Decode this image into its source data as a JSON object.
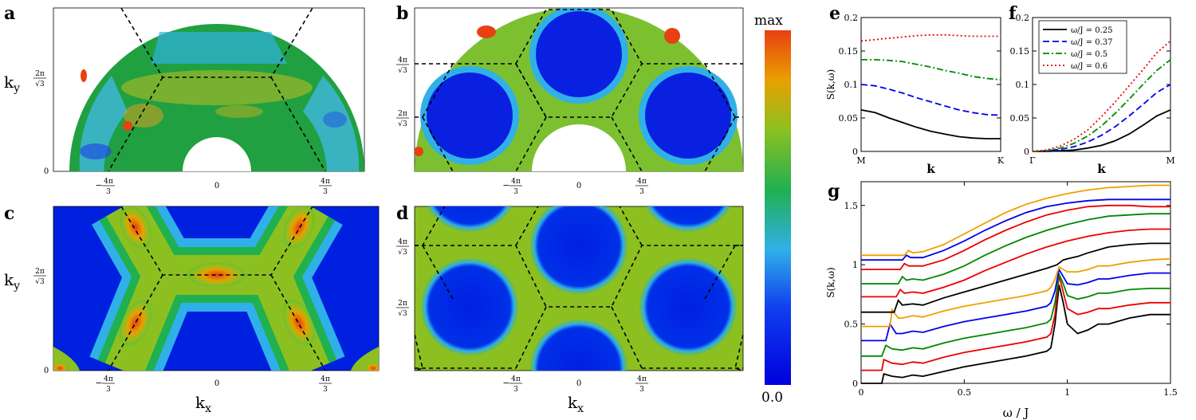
{
  "panel_labels": {
    "a": "a",
    "b": "b",
    "c": "c",
    "d": "d",
    "e": "e",
    "f": "f",
    "g": "g"
  },
  "maps": {
    "ky_label": "k",
    "ky_sub": "y",
    "kx_label": "k",
    "kx_sub": "x",
    "x_ticks": [
      {
        "minus": "−",
        "num": "4π",
        "den": "3"
      },
      {
        "minus": "",
        "num": "0",
        "den": ""
      },
      {
        "minus": "",
        "num": "4π",
        "den": "3"
      }
    ],
    "y_ticks_ac": [
      {
        "num": "2π",
        "den": "√3"
      },
      {
        "num": "0",
        "den": ""
      }
    ],
    "y_ticks_bd": [
      {
        "num": "4π",
        "den": "√3"
      },
      {
        "num": "2π",
        "den": "√3"
      }
    ],
    "zero_label": "0"
  },
  "colorbar": {
    "max_label": "max",
    "min_label": "0.0",
    "colors": [
      "#0000dd",
      "#1040ee",
      "#30b0e8",
      "#20b050",
      "#8cc020",
      "#e8a000",
      "#e84010"
    ]
  },
  "chart_data": [
    {
      "panel": "e",
      "type": "line",
      "ylabel": "S(k,ω)",
      "xlabel": "k",
      "x_tick_labels": [
        "M",
        "K"
      ],
      "ylim": [
        0,
        0.2
      ],
      "yticks": [
        "0",
        "0.05",
        "0.1",
        "0.15",
        "0.2"
      ],
      "series": [
        {
          "name": "ω/J = 0.25",
          "color": "#000000",
          "dash": "solid",
          "x": [
            0,
            0.1,
            0.2,
            0.3,
            0.4,
            0.5,
            0.6,
            0.7,
            0.8,
            0.9,
            1
          ],
          "y": [
            0.062,
            0.058,
            0.05,
            0.043,
            0.036,
            0.03,
            0.026,
            0.022,
            0.02,
            0.019,
            0.019
          ]
        },
        {
          "name": "ω/J = 0.37",
          "color": "#0000ee",
          "dash": "dash",
          "x": [
            0,
            0.1,
            0.2,
            0.3,
            0.4,
            0.5,
            0.6,
            0.7,
            0.8,
            0.9,
            1
          ],
          "y": [
            0.1,
            0.098,
            0.093,
            0.087,
            0.08,
            0.074,
            0.068,
            0.062,
            0.058,
            0.055,
            0.054
          ]
        },
        {
          "name": "ω/J = 0.5",
          "color": "#008800",
          "dash": "dashdot",
          "x": [
            0,
            0.1,
            0.2,
            0.3,
            0.4,
            0.5,
            0.6,
            0.7,
            0.8,
            0.9,
            1
          ],
          "y": [
            0.137,
            0.137,
            0.136,
            0.134,
            0.13,
            0.126,
            0.121,
            0.117,
            0.112,
            0.109,
            0.107
          ]
        },
        {
          "name": "ω/J = 0.6",
          "color": "#ee0000",
          "dash": "dot",
          "x": [
            0,
            0.1,
            0.2,
            0.3,
            0.4,
            0.5,
            0.6,
            0.7,
            0.8,
            0.9,
            1
          ],
          "y": [
            0.165,
            0.167,
            0.169,
            0.171,
            0.173,
            0.174,
            0.174,
            0.173,
            0.172,
            0.172,
            0.172
          ]
        }
      ]
    },
    {
      "panel": "f",
      "type": "line",
      "xlabel": "k",
      "x_tick_labels": [
        "Γ",
        "M"
      ],
      "ylim": [
        0,
        0.2
      ],
      "yticks": [
        "0",
        "0.05",
        "0.1",
        "0.15",
        "0.2"
      ],
      "legend": "top-left",
      "series": [
        {
          "name": "ω/J = 0.25",
          "color": "#000000",
          "dash": "solid",
          "x": [
            0,
            0.1,
            0.2,
            0.3,
            0.4,
            0.5,
            0.6,
            0.7,
            0.8,
            0.9,
            1
          ],
          "y": [
            0,
            0,
            0.001,
            0.002,
            0.005,
            0.009,
            0.016,
            0.026,
            0.039,
            0.053,
            0.062
          ]
        },
        {
          "name": "ω/J = 0.37",
          "color": "#0000ee",
          "dash": "dash",
          "x": [
            0,
            0.1,
            0.2,
            0.3,
            0.4,
            0.5,
            0.6,
            0.7,
            0.8,
            0.9,
            1
          ],
          "y": [
            0,
            0.001,
            0.003,
            0.007,
            0.014,
            0.024,
            0.037,
            0.053,
            0.07,
            0.088,
            0.1
          ]
        },
        {
          "name": "ω/J = 0.5",
          "color": "#008800",
          "dash": "dashdot",
          "x": [
            0,
            0.1,
            0.2,
            0.3,
            0.4,
            0.5,
            0.6,
            0.7,
            0.8,
            0.9,
            1
          ],
          "y": [
            0,
            0.001,
            0.005,
            0.012,
            0.023,
            0.038,
            0.057,
            0.078,
            0.1,
            0.121,
            0.137
          ]
        },
        {
          "name": "ω/J = 0.6",
          "color": "#ee0000",
          "dash": "dot",
          "x": [
            0,
            0.1,
            0.2,
            0.3,
            0.4,
            0.5,
            0.6,
            0.7,
            0.8,
            0.9,
            1
          ],
          "y": [
            0,
            0.002,
            0.008,
            0.018,
            0.032,
            0.052,
            0.074,
            0.098,
            0.122,
            0.147,
            0.165
          ]
        }
      ]
    },
    {
      "panel": "g",
      "type": "line",
      "ylabel": "S(k,ω)",
      "xlabel": "ω / J",
      "xlim": [
        0,
        1.5
      ],
      "ylim": [
        0,
        1.7
      ],
      "xticks": [
        "0",
        "0.5",
        "1",
        "1.5"
      ],
      "yticks": [
        "0",
        "0.5",
        "1",
        "1.5"
      ],
      "series": [
        {
          "color": "#000000",
          "x": [
            0,
            0.1,
            0.11,
            0.15,
            0.2,
            0.25,
            0.3,
            0.4,
            0.5,
            0.6,
            0.7,
            0.8,
            0.9,
            0.92,
            0.94,
            0.96,
            0.98,
            1.0,
            1.05,
            1.1,
            1.15,
            1.2,
            1.3,
            1.4,
            1.5
          ],
          "y": [
            0,
            0,
            0.08,
            0.06,
            0.05,
            0.07,
            0.06,
            0.1,
            0.14,
            0.17,
            0.2,
            0.23,
            0.27,
            0.3,
            0.5,
            0.83,
            0.68,
            0.5,
            0.42,
            0.45,
            0.5,
            0.5,
            0.55,
            0.58,
            0.58
          ]
        },
        {
          "color": "#ee0000",
          "x": [
            0,
            0.1,
            0.11,
            0.15,
            0.2,
            0.25,
            0.3,
            0.4,
            0.5,
            0.6,
            0.7,
            0.8,
            0.9,
            0.92,
            0.94,
            0.96,
            0.98,
            1.0,
            1.05,
            1.1,
            1.15,
            1.2,
            1.3,
            1.4,
            1.5
          ],
          "y": [
            0.11,
            0.11,
            0.2,
            0.17,
            0.16,
            0.18,
            0.17,
            0.22,
            0.26,
            0.29,
            0.32,
            0.35,
            0.39,
            0.42,
            0.58,
            0.91,
            0.77,
            0.63,
            0.58,
            0.6,
            0.63,
            0.63,
            0.66,
            0.68,
            0.68
          ]
        },
        {
          "color": "#008800",
          "x": [
            0,
            0.1,
            0.12,
            0.15,
            0.2,
            0.25,
            0.3,
            0.4,
            0.5,
            0.6,
            0.7,
            0.8,
            0.9,
            0.92,
            0.94,
            0.96,
            0.98,
            1.0,
            1.05,
            1.1,
            1.15,
            1.2,
            1.3,
            1.4,
            1.5
          ],
          "y": [
            0.23,
            0.23,
            0.32,
            0.29,
            0.28,
            0.3,
            0.29,
            0.34,
            0.38,
            0.41,
            0.44,
            0.47,
            0.51,
            0.54,
            0.68,
            0.92,
            0.84,
            0.74,
            0.71,
            0.73,
            0.76,
            0.76,
            0.79,
            0.8,
            0.8
          ]
        },
        {
          "color": "#0000ee",
          "x": [
            0,
            0.12,
            0.14,
            0.17,
            0.2,
            0.25,
            0.3,
            0.4,
            0.5,
            0.6,
            0.7,
            0.8,
            0.9,
            0.92,
            0.94,
            0.96,
            0.98,
            1.0,
            1.05,
            1.1,
            1.15,
            1.2,
            1.3,
            1.4,
            1.5
          ],
          "y": [
            0.36,
            0.36,
            0.5,
            0.42,
            0.42,
            0.44,
            0.43,
            0.48,
            0.52,
            0.55,
            0.58,
            0.61,
            0.65,
            0.68,
            0.78,
            0.96,
            0.9,
            0.84,
            0.83,
            0.85,
            0.88,
            0.88,
            0.91,
            0.93,
            0.93
          ]
        },
        {
          "color": "#f0a000",
          "x": [
            0,
            0.14,
            0.15,
            0.18,
            0.2,
            0.25,
            0.3,
            0.4,
            0.5,
            0.6,
            0.7,
            0.8,
            0.9,
            0.92,
            0.94,
            0.96,
            0.98,
            1.0,
            1.05,
            1.1,
            1.15,
            1.2,
            1.3,
            1.4,
            1.5
          ],
          "y": [
            0.48,
            0.48,
            0.62,
            0.55,
            0.55,
            0.57,
            0.56,
            0.61,
            0.65,
            0.68,
            0.71,
            0.74,
            0.78,
            0.81,
            0.88,
            0.98,
            0.96,
            0.94,
            0.94,
            0.96,
            0.99,
            0.99,
            1.02,
            1.04,
            1.05
          ]
        },
        {
          "color": "#000000",
          "x": [
            0,
            0.16,
            0.18,
            0.2,
            0.25,
            0.3,
            0.4,
            0.5,
            0.6,
            0.7,
            0.8,
            0.9,
            0.95,
            0.98,
            1.0,
            1.05,
            1.1,
            1.2,
            1.3,
            1.4,
            1.5
          ],
          "y": [
            0.6,
            0.6,
            0.7,
            0.66,
            0.67,
            0.66,
            0.72,
            0.77,
            0.82,
            0.87,
            0.92,
            0.97,
            1.0,
            1.04,
            1.05,
            1.07,
            1.1,
            1.15,
            1.17,
            1.18,
            1.18
          ]
        },
        {
          "color": "#ee0000",
          "x": [
            0,
            0.17,
            0.19,
            0.21,
            0.25,
            0.3,
            0.4,
            0.5,
            0.6,
            0.7,
            0.8,
            0.9,
            1.0,
            1.1,
            1.2,
            1.3,
            1.4,
            1.5
          ],
          "y": [
            0.73,
            0.73,
            0.79,
            0.76,
            0.77,
            0.76,
            0.81,
            0.87,
            0.95,
            1.02,
            1.09,
            1.15,
            1.2,
            1.24,
            1.27,
            1.29,
            1.3,
            1.3
          ]
        },
        {
          "color": "#008800",
          "x": [
            0,
            0.18,
            0.2,
            0.22,
            0.25,
            0.3,
            0.4,
            0.5,
            0.6,
            0.7,
            0.8,
            0.9,
            1.0,
            1.1,
            1.2,
            1.3,
            1.4,
            1.5
          ],
          "y": [
            0.84,
            0.84,
            0.9,
            0.87,
            0.88,
            0.87,
            0.92,
            0.99,
            1.08,
            1.16,
            1.23,
            1.29,
            1.34,
            1.38,
            1.41,
            1.42,
            1.43,
            1.43
          ]
        },
        {
          "color": "#ee0000",
          "x": [
            0,
            0.19,
            0.21,
            0.23,
            0.3,
            0.4,
            0.5,
            0.6,
            0.7,
            0.8,
            0.9,
            1.0,
            1.1,
            1.2,
            1.3,
            1.4,
            1.5
          ],
          "y": [
            0.96,
            0.96,
            1.01,
            0.99,
            0.99,
            1.04,
            1.12,
            1.21,
            1.29,
            1.36,
            1.42,
            1.46,
            1.49,
            1.5,
            1.5,
            1.49,
            1.49
          ]
        },
        {
          "color": "#0000ee",
          "x": [
            0,
            0.2,
            0.22,
            0.24,
            0.3,
            0.4,
            0.5,
            0.6,
            0.7,
            0.8,
            0.9,
            1.0,
            1.1,
            1.2,
            1.3,
            1.4,
            1.5
          ],
          "y": [
            1.04,
            1.04,
            1.08,
            1.06,
            1.06,
            1.12,
            1.2,
            1.29,
            1.37,
            1.44,
            1.49,
            1.52,
            1.54,
            1.55,
            1.55,
            1.55,
            1.55
          ]
        },
        {
          "color": "#f0a000",
          "x": [
            0,
            0.21,
            0.23,
            0.25,
            0.3,
            0.4,
            0.5,
            0.6,
            0.7,
            0.8,
            0.9,
            1.0,
            1.1,
            1.2,
            1.3,
            1.4,
            1.5
          ],
          "y": [
            1.08,
            1.08,
            1.12,
            1.1,
            1.11,
            1.17,
            1.26,
            1.35,
            1.44,
            1.51,
            1.56,
            1.6,
            1.63,
            1.65,
            1.66,
            1.67,
            1.67
          ]
        }
      ]
    }
  ]
}
